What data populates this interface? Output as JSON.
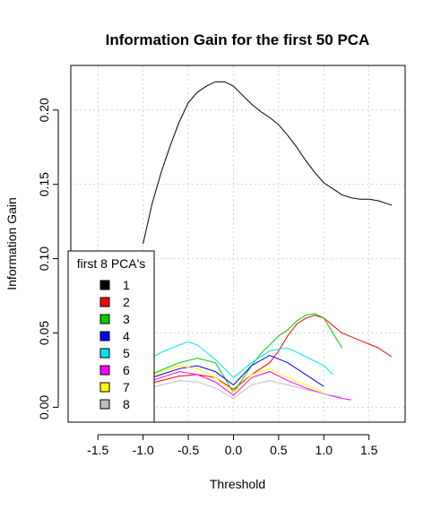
{
  "chart_data": {
    "type": "line",
    "title": "Information Gain for the first 50 PCA",
    "xlabel": "Threshold",
    "ylabel": "Information Gain",
    "xlim": [
      -1.8,
      1.9
    ],
    "ylim": [
      -0.01,
      0.23
    ],
    "x_ticks": [
      -1.5,
      -1.0,
      -0.5,
      0.0,
      0.5,
      1.0,
      1.5
    ],
    "x_tick_labels": [
      "-1.5",
      "-1.0",
      "-0.5",
      "0.0",
      "0.5",
      "1.0",
      "1.5"
    ],
    "y_ticks": [
      0.0,
      0.05,
      0.1,
      0.15,
      0.2
    ],
    "y_tick_labels": [
      "0.00",
      "0.05",
      "0.10",
      "0.15",
      "0.20"
    ],
    "grid": true,
    "legend": {
      "title": "first 8 PCA's",
      "placement": "bottom-left",
      "entries": [
        "1",
        "2",
        "3",
        "4",
        "5",
        "6",
        "7",
        "8"
      ]
    },
    "series": [
      {
        "name": "1",
        "color": "#000000",
        "x": [
          -1.0,
          -0.9,
          -0.8,
          -0.7,
          -0.6,
          -0.5,
          -0.4,
          -0.3,
          -0.2,
          -0.1,
          0.0,
          0.1,
          0.2,
          0.3,
          0.4,
          0.5,
          0.6,
          0.7,
          0.8,
          0.9,
          1.0,
          1.1,
          1.2,
          1.3,
          1.4,
          1.5,
          1.6,
          1.7,
          1.75
        ],
        "y": [
          0.11,
          0.137,
          0.158,
          0.176,
          0.192,
          0.205,
          0.212,
          0.216,
          0.219,
          0.219,
          0.216,
          0.21,
          0.204,
          0.199,
          0.195,
          0.19,
          0.183,
          0.175,
          0.166,
          0.158,
          0.151,
          0.147,
          0.143,
          0.141,
          0.14,
          0.14,
          0.139,
          0.137,
          0.136
        ]
      },
      {
        "name": "2",
        "color": "#ff0000",
        "x": [
          -1.0,
          -0.8,
          -0.6,
          -0.4,
          -0.2,
          0.0,
          0.2,
          0.4,
          0.5,
          0.6,
          0.7,
          0.8,
          0.9,
          1.0,
          1.1,
          1.2,
          1.4,
          1.6,
          1.75
        ],
        "y": [
          0.015,
          0.018,
          0.021,
          0.022,
          0.02,
          0.012,
          0.022,
          0.03,
          0.038,
          0.048,
          0.056,
          0.06,
          0.062,
          0.06,
          0.055,
          0.05,
          0.045,
          0.04,
          0.034
        ]
      },
      {
        "name": "3",
        "color": "#00cc00",
        "x": [
          -1.0,
          -0.8,
          -0.6,
          -0.4,
          -0.2,
          0.0,
          0.2,
          0.3,
          0.4,
          0.5,
          0.6,
          0.7,
          0.8,
          0.9,
          1.0,
          1.1,
          1.2
        ],
        "y": [
          0.02,
          0.025,
          0.03,
          0.033,
          0.03,
          0.01,
          0.028,
          0.036,
          0.042,
          0.048,
          0.052,
          0.058,
          0.062,
          0.063,
          0.06,
          0.05,
          0.04
        ]
      },
      {
        "name": "4",
        "color": "#0000ff",
        "x": [
          -1.0,
          -0.8,
          -0.6,
          -0.4,
          -0.2,
          0.0,
          0.2,
          0.4,
          0.6,
          0.8,
          1.0
        ],
        "y": [
          0.018,
          0.022,
          0.026,
          0.028,
          0.024,
          0.015,
          0.028,
          0.035,
          0.03,
          0.022,
          0.014
        ]
      },
      {
        "name": "5",
        "color": "#00e5ee",
        "x": [
          -1.0,
          -0.8,
          -0.6,
          -0.5,
          -0.4,
          -0.2,
          0.0,
          0.2,
          0.4,
          0.6,
          0.8,
          1.0,
          1.1
        ],
        "y": [
          0.03,
          0.037,
          0.042,
          0.044,
          0.042,
          0.032,
          0.02,
          0.03,
          0.038,
          0.04,
          0.034,
          0.028,
          0.022
        ]
      },
      {
        "name": "6",
        "color": "#ff00ff",
        "x": [
          -1.0,
          -0.8,
          -0.6,
          -0.4,
          -0.2,
          0.0,
          0.2,
          0.4,
          0.6,
          0.8,
          1.0,
          1.2,
          1.3
        ],
        "y": [
          0.016,
          0.02,
          0.024,
          0.022,
          0.017,
          0.008,
          0.02,
          0.024,
          0.018,
          0.013,
          0.009,
          0.006,
          0.005
        ]
      },
      {
        "name": "7",
        "color": "#ffff00",
        "x": [
          -1.0,
          -0.8,
          -0.6,
          -0.4,
          -0.2,
          0.0,
          0.2,
          0.4,
          0.6,
          0.8,
          1.0
        ],
        "y": [
          0.02,
          0.024,
          0.028,
          0.026,
          0.02,
          0.01,
          0.022,
          0.026,
          0.02,
          0.015,
          0.01
        ]
      },
      {
        "name": "8",
        "color": "#bebebe",
        "x": [
          -1.0,
          -0.8,
          -0.6,
          -0.4,
          -0.2,
          0.0,
          0.2,
          0.4,
          0.6,
          0.8,
          1.0,
          1.2
        ],
        "y": [
          0.012,
          0.015,
          0.018,
          0.017,
          0.013,
          0.006,
          0.015,
          0.018,
          0.015,
          0.012,
          0.009,
          0.007
        ]
      }
    ]
  }
}
